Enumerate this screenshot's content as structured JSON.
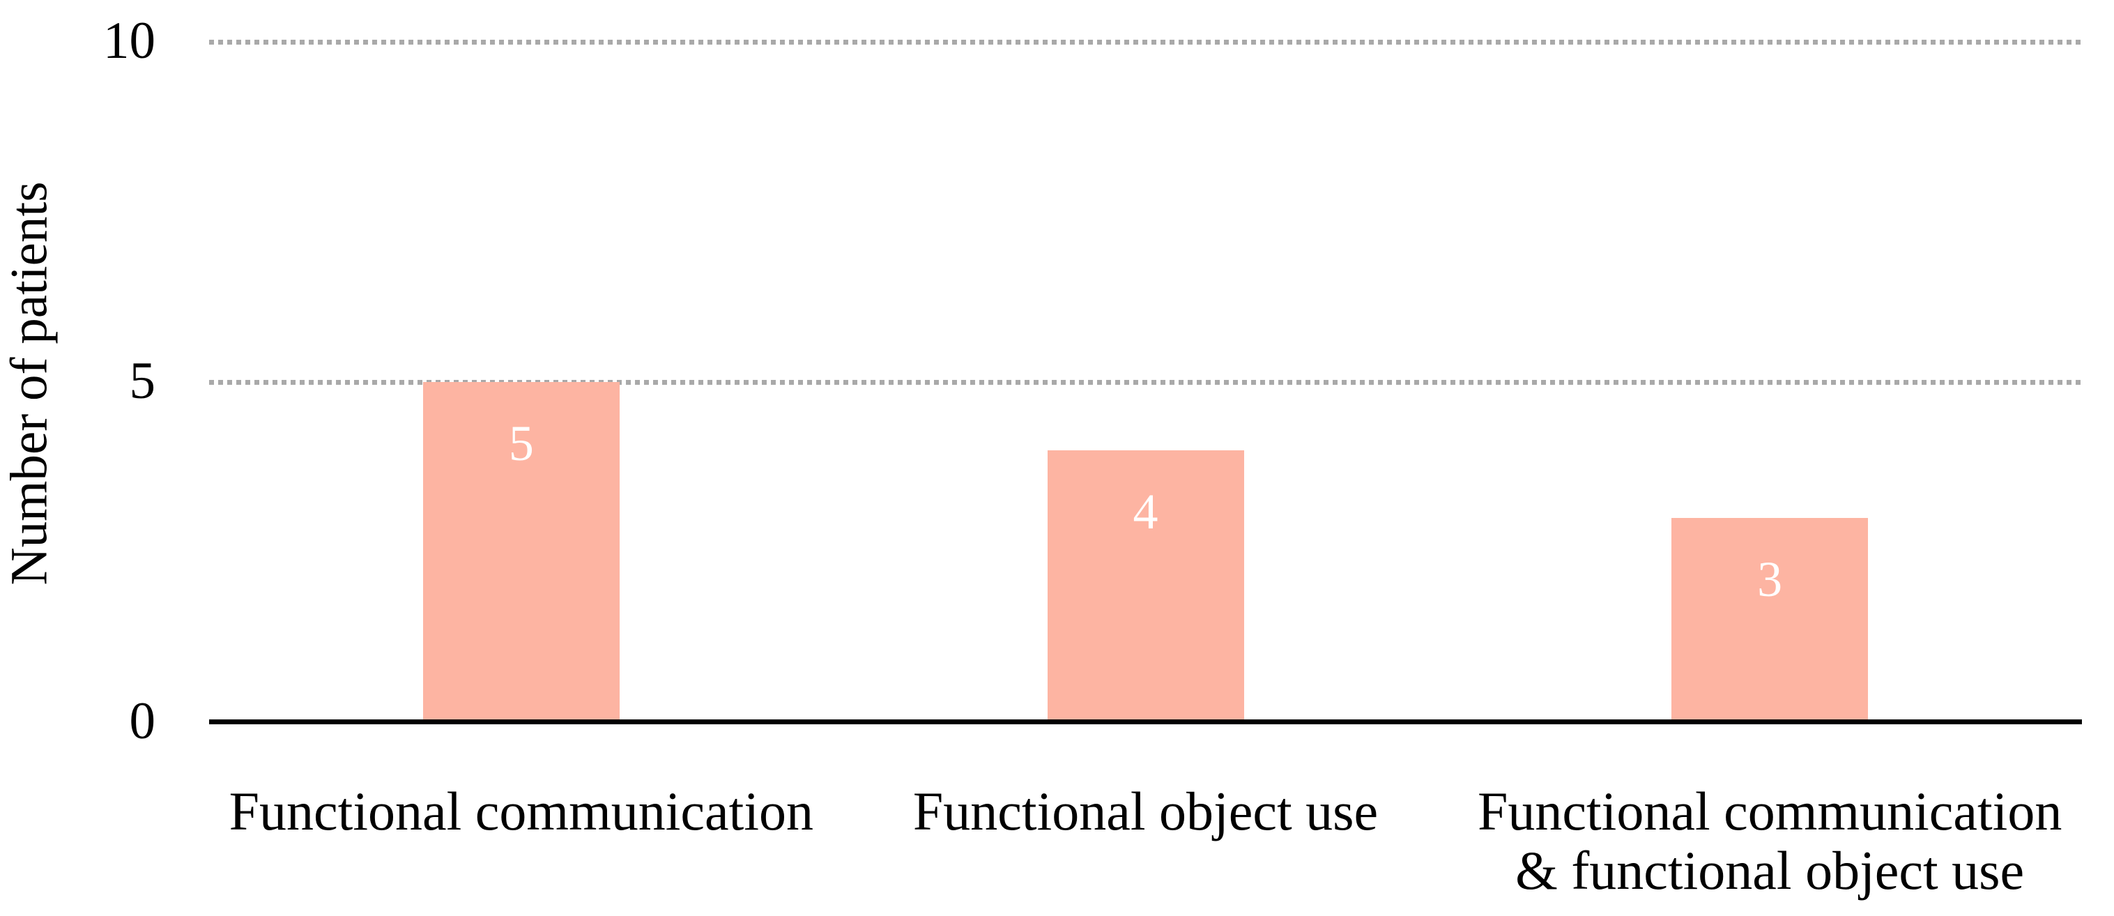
{
  "chart_data": {
    "type": "bar",
    "title": "",
    "ylabel": "Number of patients",
    "xlabel": "",
    "ylim": [
      0,
      10
    ],
    "yticks": [
      0,
      5,
      10
    ],
    "gridline_values": [
      5,
      10
    ],
    "gridline_style": "dotted",
    "gridline_color": "#a9a9a9",
    "axis_line_color": "#000000",
    "categories": [
      "Functional communication",
      "Functional object use",
      "Functional communication & functional object use"
    ],
    "category_label_lines": [
      [
        "Functional communication"
      ],
      [
        "Functional object use"
      ],
      [
        "Functional communication",
        "& functional object use"
      ]
    ],
    "values": [
      5,
      4,
      3
    ],
    "data_labels": [
      "5",
      "4",
      "3"
    ],
    "data_label_position": "inside-end",
    "data_label_color": "#ffffff",
    "bar_color": "#fdb4a2",
    "legend": "none",
    "grid": "horizontal dotted lines at 5 and 10 only"
  }
}
